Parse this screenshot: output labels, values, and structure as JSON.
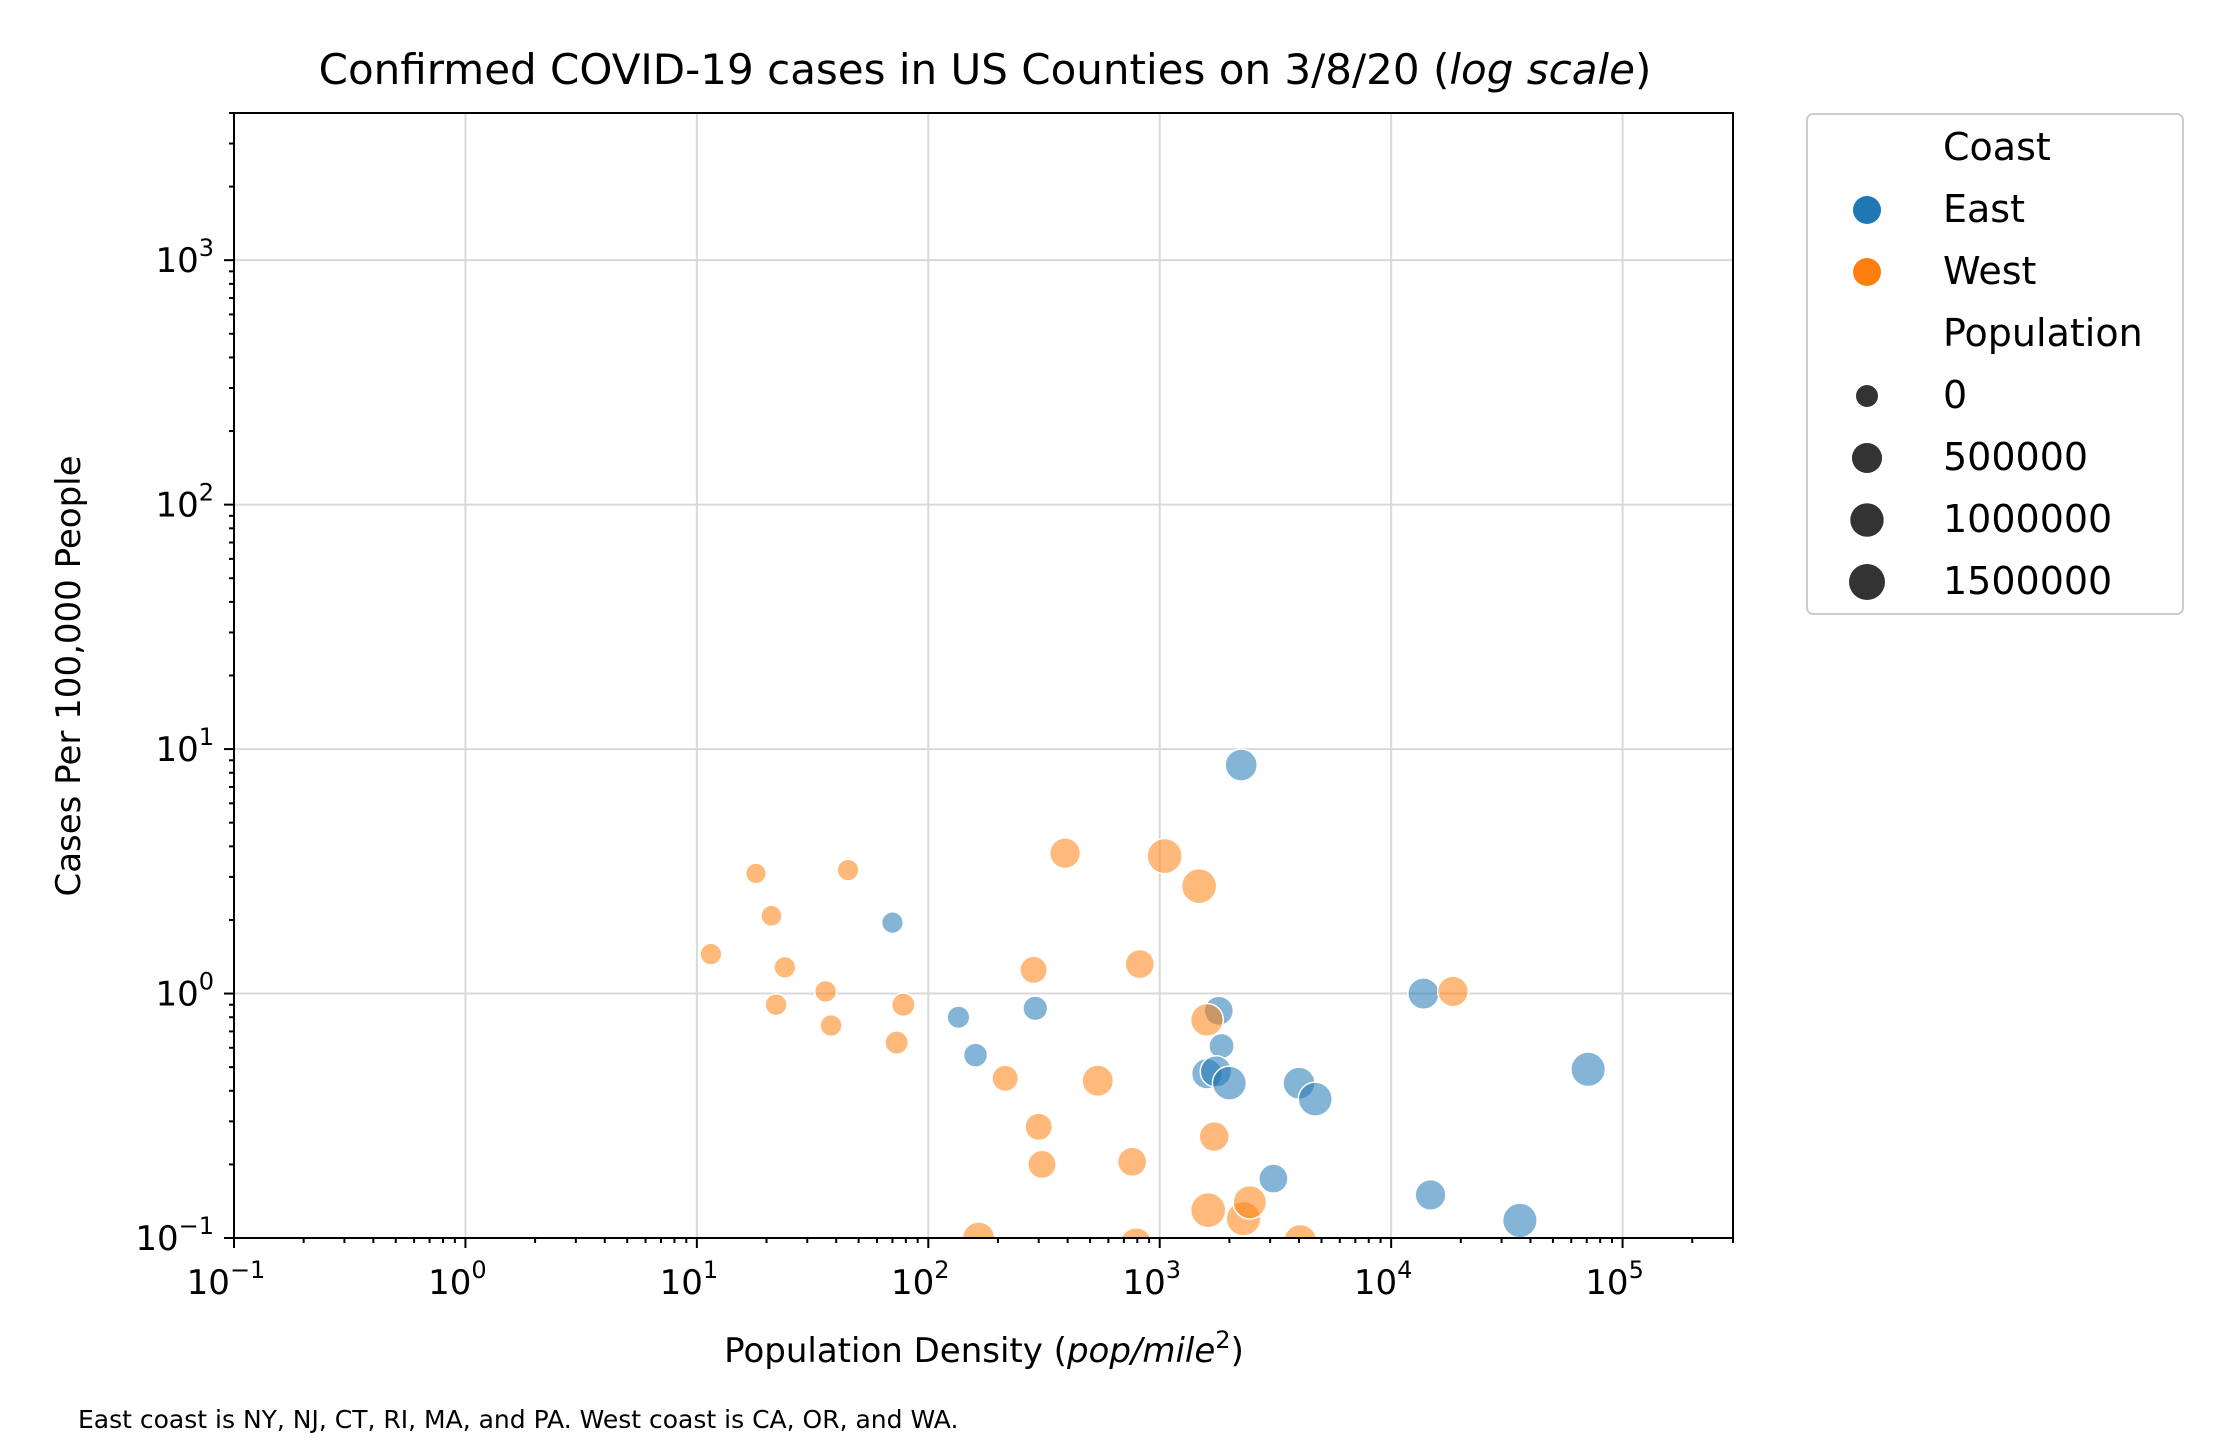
{
  "chart_data": {
    "type": "scatter",
    "title": "Confirmed COVID-19 cases in US Counties on 3/8/20 (log scale)",
    "title_parts": [
      "Confirmed COVID-19 cases in US Counties on 3/8/20 (",
      "log scale",
      ")"
    ],
    "xlabel": "Population Density (pop/mile²)",
    "xlabel_parts": [
      "Population Density (",
      "pop/mile",
      "2",
      ")"
    ],
    "ylabel": "Cases Per 100,000 People",
    "xscale": "log",
    "yscale": "log",
    "xlim": [
      0.1,
      300000
    ],
    "ylim": [
      0.1,
      4000
    ],
    "grid": true,
    "x_ticks": [
      {
        "value": 0.1,
        "base": "10",
        "exp": "−1"
      },
      {
        "value": 1,
        "base": "10",
        "exp": "0"
      },
      {
        "value": 10,
        "base": "10",
        "exp": "1"
      },
      {
        "value": 100,
        "base": "10",
        "exp": "2"
      },
      {
        "value": 1000,
        "base": "10",
        "exp": "3"
      },
      {
        "value": 10000,
        "base": "10",
        "exp": "4"
      },
      {
        "value": 100000,
        "base": "10",
        "exp": "5"
      }
    ],
    "y_ticks": [
      {
        "value": 0.1,
        "base": "10",
        "exp": "−1"
      },
      {
        "value": 1,
        "base": "10",
        "exp": "0"
      },
      {
        "value": 10,
        "base": "10",
        "exp": "1"
      },
      {
        "value": 100,
        "base": "10",
        "exp": "2"
      },
      {
        "value": 1000,
        "base": "10",
        "exp": "3"
      }
    ],
    "legend": {
      "placement": "outside-right-top",
      "hue_title": "Coast",
      "size_title": "Population",
      "hue_entries": [
        {
          "label": "East",
          "color": "#1f77b4"
        },
        {
          "label": "West",
          "color": "#ff7f0e"
        }
      ],
      "size_entries": [
        {
          "label": "0",
          "value": 0
        },
        {
          "label": "500000",
          "value": 500000
        },
        {
          "label": "1000000",
          "value": 1000000
        },
        {
          "label": "1500000",
          "value": 1500000
        }
      ]
    },
    "series": [
      {
        "name": "East",
        "color": "#1f77b4",
        "points": [
          {
            "x": 2250,
            "y": 8.6,
            "population": 1200000
          },
          {
            "x": 70,
            "y": 1.95,
            "population": 150000
          },
          {
            "x": 135,
            "y": 0.8,
            "population": 200000
          },
          {
            "x": 160,
            "y": 0.56,
            "population": 300000
          },
          {
            "x": 290,
            "y": 0.87,
            "population": 350000
          },
          {
            "x": 1800,
            "y": 0.85,
            "population": 800000
          },
          {
            "x": 1850,
            "y": 0.61,
            "population": 400000
          },
          {
            "x": 1600,
            "y": 0.47,
            "population": 1000000
          },
          {
            "x": 1750,
            "y": 0.48,
            "population": 1100000
          },
          {
            "x": 2000,
            "y": 0.43,
            "population": 1500000
          },
          {
            "x": 4000,
            "y": 0.43,
            "population": 1200000
          },
          {
            "x": 4700,
            "y": 0.37,
            "population": 1500000
          },
          {
            "x": 3100,
            "y": 0.175,
            "population": 800000
          },
          {
            "x": 13800,
            "y": 1.0,
            "population": 1100000
          },
          {
            "x": 14800,
            "y": 0.15,
            "population": 1000000
          },
          {
            "x": 36000,
            "y": 0.118,
            "population": 1600000
          },
          {
            "x": 71000,
            "y": 0.49,
            "population": 1600000
          }
        ]
      },
      {
        "name": "West",
        "color": "#ff7f0e",
        "points": [
          {
            "x": 18,
            "y": 3.1,
            "population": 100000
          },
          {
            "x": 45,
            "y": 3.2,
            "population": 150000
          },
          {
            "x": 21,
            "y": 2.08,
            "population": 120000
          },
          {
            "x": 11.5,
            "y": 1.45,
            "population": 150000
          },
          {
            "x": 24,
            "y": 1.28,
            "population": 150000
          },
          {
            "x": 36,
            "y": 1.02,
            "population": 160000
          },
          {
            "x": 22,
            "y": 0.9,
            "population": 160000
          },
          {
            "x": 38,
            "y": 0.74,
            "population": 160000
          },
          {
            "x": 78,
            "y": 0.9,
            "population": 250000
          },
          {
            "x": 73,
            "y": 0.63,
            "population": 250000
          },
          {
            "x": 390,
            "y": 3.75,
            "population": 1000000
          },
          {
            "x": 1050,
            "y": 3.65,
            "population": 1700000
          },
          {
            "x": 1480,
            "y": 2.75,
            "population": 1700000
          },
          {
            "x": 285,
            "y": 1.25,
            "population": 600000
          },
          {
            "x": 820,
            "y": 1.32,
            "population": 800000
          },
          {
            "x": 215,
            "y": 0.45,
            "population": 500000
          },
          {
            "x": 540,
            "y": 0.44,
            "population": 1100000
          },
          {
            "x": 1600,
            "y": 0.78,
            "population": 1300000
          },
          {
            "x": 18500,
            "y": 1.02,
            "population": 1000000
          },
          {
            "x": 300,
            "y": 0.285,
            "population": 600000
          },
          {
            "x": 1720,
            "y": 0.26,
            "population": 900000
          },
          {
            "x": 310,
            "y": 0.2,
            "population": 700000
          },
          {
            "x": 760,
            "y": 0.205,
            "population": 800000
          },
          {
            "x": 1620,
            "y": 0.13,
            "population": 1700000
          },
          {
            "x": 2300,
            "y": 0.12,
            "population": 1600000
          },
          {
            "x": 2450,
            "y": 0.14,
            "population": 1400000
          },
          {
            "x": 165,
            "y": 0.1,
            "population": 1200000
          },
          {
            "x": 790,
            "y": 0.095,
            "population": 1100000
          },
          {
            "x": 4050,
            "y": 0.097,
            "population": 1400000
          }
        ]
      }
    ],
    "footnote": "East coast is NY, NJ, CT, RI, MA, and PA. West coast is CA, OR, and WA."
  }
}
